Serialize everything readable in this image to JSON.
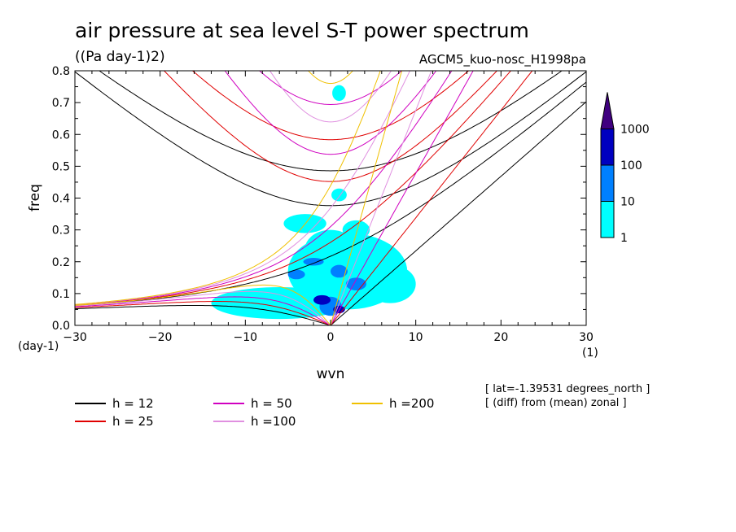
{
  "chart_data": {
    "type": "contour",
    "title": "air pressure at sea level S-T power spectrum",
    "units": "((Pa day-1)2)",
    "dataset": "AGCM5_kuo-nosc_H1998pa",
    "xlabel": "wvn",
    "ylabel": "freq",
    "x_unit": "(1)",
    "y_unit": "(day-1)",
    "xlim": [
      -30,
      30
    ],
    "ylim": [
      0,
      0.8
    ],
    "x_ticks": [
      "-30",
      "-20",
      "-10",
      "0",
      "10",
      "20",
      "30"
    ],
    "y_ticks": [
      "0.0",
      "0.1",
      "0.2",
      "0.3",
      "0.4",
      "0.5",
      "0.6",
      "0.7",
      "0.8"
    ],
    "colorbar": {
      "levels": [
        "1",
        "10",
        "100",
        "1000"
      ],
      "colors": [
        "#00ffff",
        "#0080ff",
        "#0000c0",
        "#400080"
      ]
    },
    "dispersion_curves": [
      {
        "label": "h = 12",
        "h": 12,
        "color": "#000000"
      },
      {
        "label": "h = 25",
        "h": 25,
        "color": "#e00000"
      },
      {
        "label": "h = 50",
        "h": 50,
        "color": "#d000c0"
      },
      {
        "label": "h =100",
        "h": 100,
        "color": "#e090e0"
      },
      {
        "label": "h =200",
        "h": 200,
        "color": "#f0c000"
      }
    ],
    "notes": [
      "[ lat=-1.39531 degrees_north ]",
      "[ (diff) from (mean) zonal ]"
    ],
    "power_blobs": [
      {
        "x": 2,
        "y": 0.17,
        "rx": 7,
        "ry": 0.12,
        "level": 0
      },
      {
        "x": -6,
        "y": 0.07,
        "rx": 8,
        "ry": 0.05,
        "level": 0
      },
      {
        "x": 0,
        "y": 0.24,
        "rx": 3,
        "ry": 0.06,
        "level": 0
      },
      {
        "x": 7,
        "y": 0.13,
        "rx": 3,
        "ry": 0.06,
        "level": 0
      },
      {
        "x": 3,
        "y": 0.3,
        "rx": 1.6,
        "ry": 0.03,
        "level": 0
      },
      {
        "x": -3,
        "y": 0.32,
        "rx": 2.5,
        "ry": 0.03,
        "level": 0
      },
      {
        "x": 1,
        "y": 0.73,
        "rx": 0.8,
        "ry": 0.025,
        "level": 0
      },
      {
        "x": 1,
        "y": 0.41,
        "rx": 0.9,
        "ry": 0.02,
        "level": 0
      },
      {
        "x": -2,
        "y": 0.2,
        "rx": 1.2,
        "ry": 0.012,
        "level": 1
      },
      {
        "x": 0,
        "y": 0.06,
        "rx": 1.3,
        "ry": 0.03,
        "level": 1
      },
      {
        "x": 1,
        "y": 0.17,
        "rx": 1.0,
        "ry": 0.02,
        "level": 1
      },
      {
        "x": -4,
        "y": 0.16,
        "rx": 1.0,
        "ry": 0.015,
        "level": 1
      },
      {
        "x": 3,
        "y": 0.13,
        "rx": 1.2,
        "ry": 0.02,
        "level": 1
      },
      {
        "x": -1,
        "y": 0.08,
        "rx": 1.0,
        "ry": 0.015,
        "level": 2
      },
      {
        "x": 1,
        "y": 0.05,
        "rx": 0.7,
        "ry": 0.012,
        "level": 2
      }
    ]
  }
}
